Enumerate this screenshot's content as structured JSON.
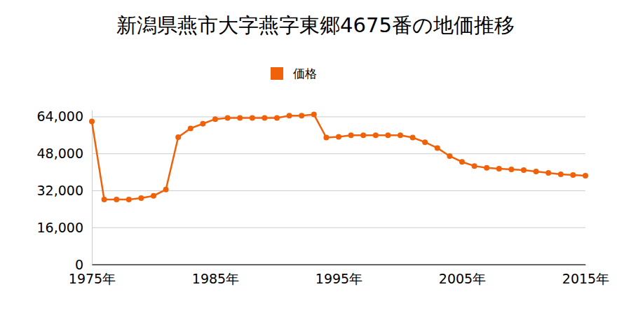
{
  "chart_data": {
    "type": "line",
    "title": "新潟県燕市大字燕字東郷4675番の地価推移",
    "x": [
      1975,
      1976,
      1977,
      1978,
      1979,
      1980,
      1981,
      1982,
      1983,
      1984,
      1985,
      1986,
      1987,
      1988,
      1989,
      1990,
      1991,
      1992,
      1993,
      1994,
      1995,
      1996,
      1997,
      1998,
      1999,
      2000,
      2001,
      2002,
      2003,
      2004,
      2005,
      2006,
      2007,
      2008,
      2009,
      2010,
      2011,
      2012,
      2013,
      2014,
      2015
    ],
    "series": [
      {
        "name": "価格",
        "color": "#f0620a",
        "marker": "circle",
        "values": [
          62000,
          28200,
          28200,
          28200,
          28800,
          29800,
          32500,
          55200,
          59000,
          61000,
          63000,
          63500,
          63500,
          63500,
          63500,
          63500,
          64500,
          64500,
          65000,
          55000,
          55300,
          56000,
          56000,
          56000,
          56000,
          56000,
          55000,
          53000,
          50500,
          47000,
          44500,
          42700,
          41900,
          41500,
          41200,
          40900,
          40300,
          39700,
          39100,
          38800,
          38500
        ]
      }
    ],
    "xlim": [
      1975,
      2015
    ],
    "xticks": [
      {
        "value": 1975,
        "label": "1975年"
      },
      {
        "value": 1985,
        "label": "1985年"
      },
      {
        "value": 1995,
        "label": "1995年"
      },
      {
        "value": 2005,
        "label": "2005年"
      },
      {
        "value": 2015,
        "label": "2015年"
      }
    ],
    "ylim": [
      0,
      67000
    ],
    "yticks": [
      0,
      {
        "value": 16000,
        "label": "16,000"
      },
      {
        "value": 32000,
        "label": "32,000"
      },
      {
        "value": 48000,
        "label": "48,000"
      },
      {
        "value": 64000,
        "label": "64,000"
      }
    ],
    "grid": true,
    "legend": "top"
  }
}
